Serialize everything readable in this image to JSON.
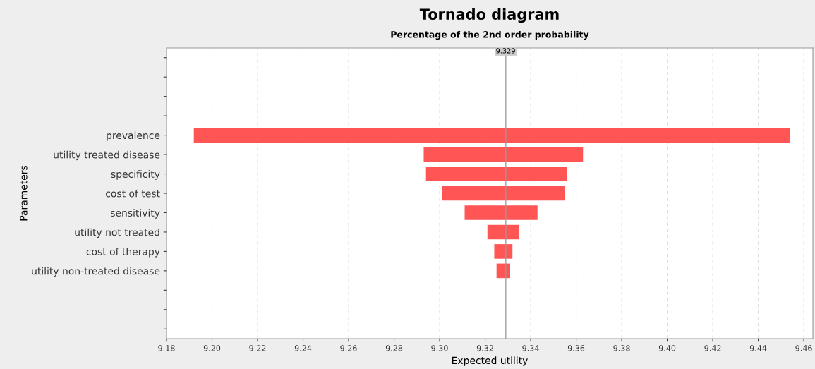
{
  "chart_data": {
    "type": "bar",
    "orientation": "horizontal",
    "title": "Tornado diagram",
    "subtitle": "Percentage of the 2nd order probability",
    "xlabel": "Expected utility",
    "ylabel": "Parameters",
    "categories": [
      null,
      null,
      null,
      null,
      "prevalence",
      "utility treated disease",
      "specificity",
      "cost of test",
      "sensitivity",
      "utility not treated",
      "cost of therapy",
      "utility non-treated disease",
      null,
      null,
      null
    ],
    "base": [
      null,
      null,
      null,
      null,
      9.192,
      9.293,
      9.294,
      9.301,
      9.311,
      9.321,
      9.324,
      9.325,
      null,
      null,
      null
    ],
    "values": [
      null,
      null,
      null,
      null,
      0.262,
      0.07,
      0.062,
      0.054,
      0.032,
      0.014,
      0.008,
      0.006,
      null,
      null,
      null
    ],
    "color": "#ff5555",
    "xlim": [
      9.18,
      9.464
    ],
    "xticks": [
      {
        "value": 9.18,
        "label": "9.18"
      },
      {
        "value": 9.2,
        "label": "9.20"
      },
      9.22,
      9.24,
      9.26,
      9.28,
      {
        "value": 9.3,
        "label": "9.30"
      },
      9.32,
      9.34,
      9.36,
      9.38,
      {
        "value": 9.4,
        "label": "9.40"
      },
      9.42,
      9.44,
      9.46
    ],
    "grid": "x",
    "ref_lines": [
      {
        "axis": "x",
        "value": 9.329,
        "label": "9.329",
        "color": "#999999"
      }
    ]
  }
}
